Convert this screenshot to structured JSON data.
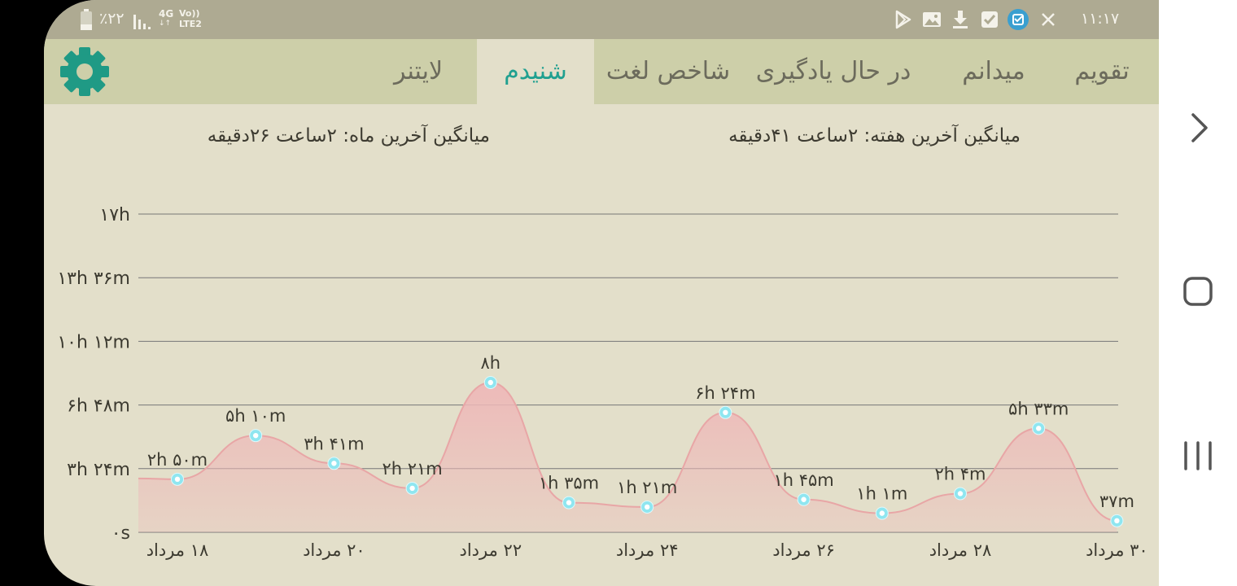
{
  "status_bar": {
    "time": "۱۱:۱۷",
    "battery": "٪۲۲",
    "network_type": "4G",
    "volte": "Vo)) LTE2",
    "icons": [
      "play-store-icon",
      "gallery-icon",
      "download-icon",
      "check-icon",
      "task-icon",
      "close-icon",
      "battery-icon",
      "signal-icon"
    ]
  },
  "tabs": [
    {
      "label": "تقویم",
      "active": false
    },
    {
      "label": "میدانم",
      "active": false
    },
    {
      "label": "در حال یادگیری",
      "active": false
    },
    {
      "label": "شاخص لغت",
      "active": false
    },
    {
      "label": "شنیدم",
      "active": true
    },
    {
      "label": "لایتنر",
      "active": false
    }
  ],
  "settings_icon": "gear-icon",
  "colors": {
    "accent": "#20a090",
    "background": "#e3dfca",
    "appbar": "#cdcfa9",
    "statusbar": "#aeaa92",
    "area": "#eeb8b8",
    "point": "#8fe6f0"
  },
  "averages": {
    "week": "میانگین آخرین هفته:  ۲ساعت  ۴۱دقیقه",
    "month": "میانگین آخرین ماه:  ۲ساعت  ۲۶دقیقه"
  },
  "chart_data": {
    "type": "area",
    "title": "",
    "xlabel": "",
    "ylabel": "",
    "y_unit": "minutes",
    "ylim": [
      0,
      1020
    ],
    "y_ticks": [
      0,
      204,
      408,
      612,
      816,
      1020
    ],
    "y_tick_labels": [
      "۰s",
      "۳h ۲۴m",
      "۶h ۴۸m",
      "۱۰h ۱۲m",
      "۱۳h ۳۶m",
      "۱۷h"
    ],
    "x_tick_labels": [
      {
        "day": 18,
        "label": "۱۸ مرداد"
      },
      {
        "day": 20,
        "label": "۲۰ مرداد"
      },
      {
        "day": 22,
        "label": "۲۲ مرداد"
      },
      {
        "day": 24,
        "label": "۲۴ مرداد"
      },
      {
        "day": 26,
        "label": "۲۶ مرداد"
      },
      {
        "day": 28,
        "label": "۲۸ مرداد"
      },
      {
        "day": 30,
        "label": "۳۰ مرداد"
      }
    ],
    "grid": true,
    "points": [
      {
        "day": 18,
        "minutes": 170,
        "label": "۲h ۵۰m"
      },
      {
        "day": 19,
        "minutes": 310,
        "label": "۵h ۱۰m"
      },
      {
        "day": 20,
        "minutes": 221,
        "label": "۳h ۴۱m"
      },
      {
        "day": 21,
        "minutes": 141,
        "label": "۲h ۲۱m"
      },
      {
        "day": 22,
        "minutes": 480,
        "label": "۸h"
      },
      {
        "day": 23,
        "minutes": 95,
        "label": "۱h ۳۵m"
      },
      {
        "day": 24,
        "minutes": 81,
        "label": "۱h ۲۱m"
      },
      {
        "day": 25,
        "minutes": 384,
        "label": "۶h ۲۴m"
      },
      {
        "day": 26,
        "minutes": 105,
        "label": "۱h ۴۵m"
      },
      {
        "day": 27,
        "minutes": 61,
        "label": "۱h ۱m"
      },
      {
        "day": 28,
        "minutes": 124,
        "label": "۲h ۴m"
      },
      {
        "day": 29,
        "minutes": 333,
        "label": "۵h ۳۳m"
      },
      {
        "day": 30,
        "minutes": 37,
        "label": "۳۷m"
      }
    ]
  },
  "nav_bar": {
    "icons": [
      "chevron-right-icon",
      "home-icon",
      "recents-icon"
    ]
  }
}
